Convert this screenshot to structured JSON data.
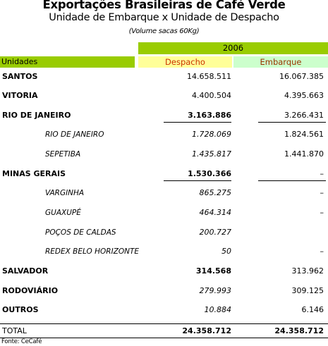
{
  "title": "Exportações Brasileiras de Café Verde",
  "subtitle": "Unidade de Embarque x Unidade de Despacho",
  "note": "(Volume sacas 60Kg)",
  "year": "2006",
  "headers": {
    "unidades": "Unidades",
    "despacho": "Despacho",
    "embarque": "Embarque"
  },
  "rows": [
    {
      "label": "SANTOS",
      "despacho": "14.658.511",
      "embarque": "16.067.385"
    },
    {
      "label": "VITORIA",
      "despacho": "4.400.504",
      "embarque": "4.395.663"
    },
    {
      "label": "RIO DE JANEIRO",
      "despacho": "3.163.886",
      "embarque": "3.266.431"
    },
    {
      "label": "RIO DE JANEIRO",
      "despacho": "1.728.069",
      "embarque": "1.824.561"
    },
    {
      "label": "SEPETIBA",
      "despacho": "1.435.817",
      "embarque": "1.441.870"
    },
    {
      "label": "MINAS GERAIS",
      "despacho": "1.530.366",
      "embarque": "–"
    },
    {
      "label": "VARGINHA",
      "despacho": "865.275",
      "embarque": "–"
    },
    {
      "label": "GUAXUPÉ",
      "despacho": "464.314",
      "embarque": "–"
    },
    {
      "label": "POÇOS DE CALDAS",
      "despacho": "200.727",
      "embarque": ""
    },
    {
      "label": "REDEX BELO HORIZONTE",
      "despacho": "50",
      "embarque": "–"
    },
    {
      "label": "SALVADOR",
      "despacho": "314.568",
      "embarque": "313.962"
    },
    {
      "label": "RODOVIÁRIO",
      "despacho": "279.993",
      "embarque": "309.125"
    },
    {
      "label": "OUTROS",
      "despacho": "10.884",
      "embarque": "6.146"
    }
  ],
  "total": {
    "label": "TOTAL",
    "despacho": "24.358.712",
    "embarque": "24.358.712"
  },
  "source": "Fonte: CeCafé"
}
